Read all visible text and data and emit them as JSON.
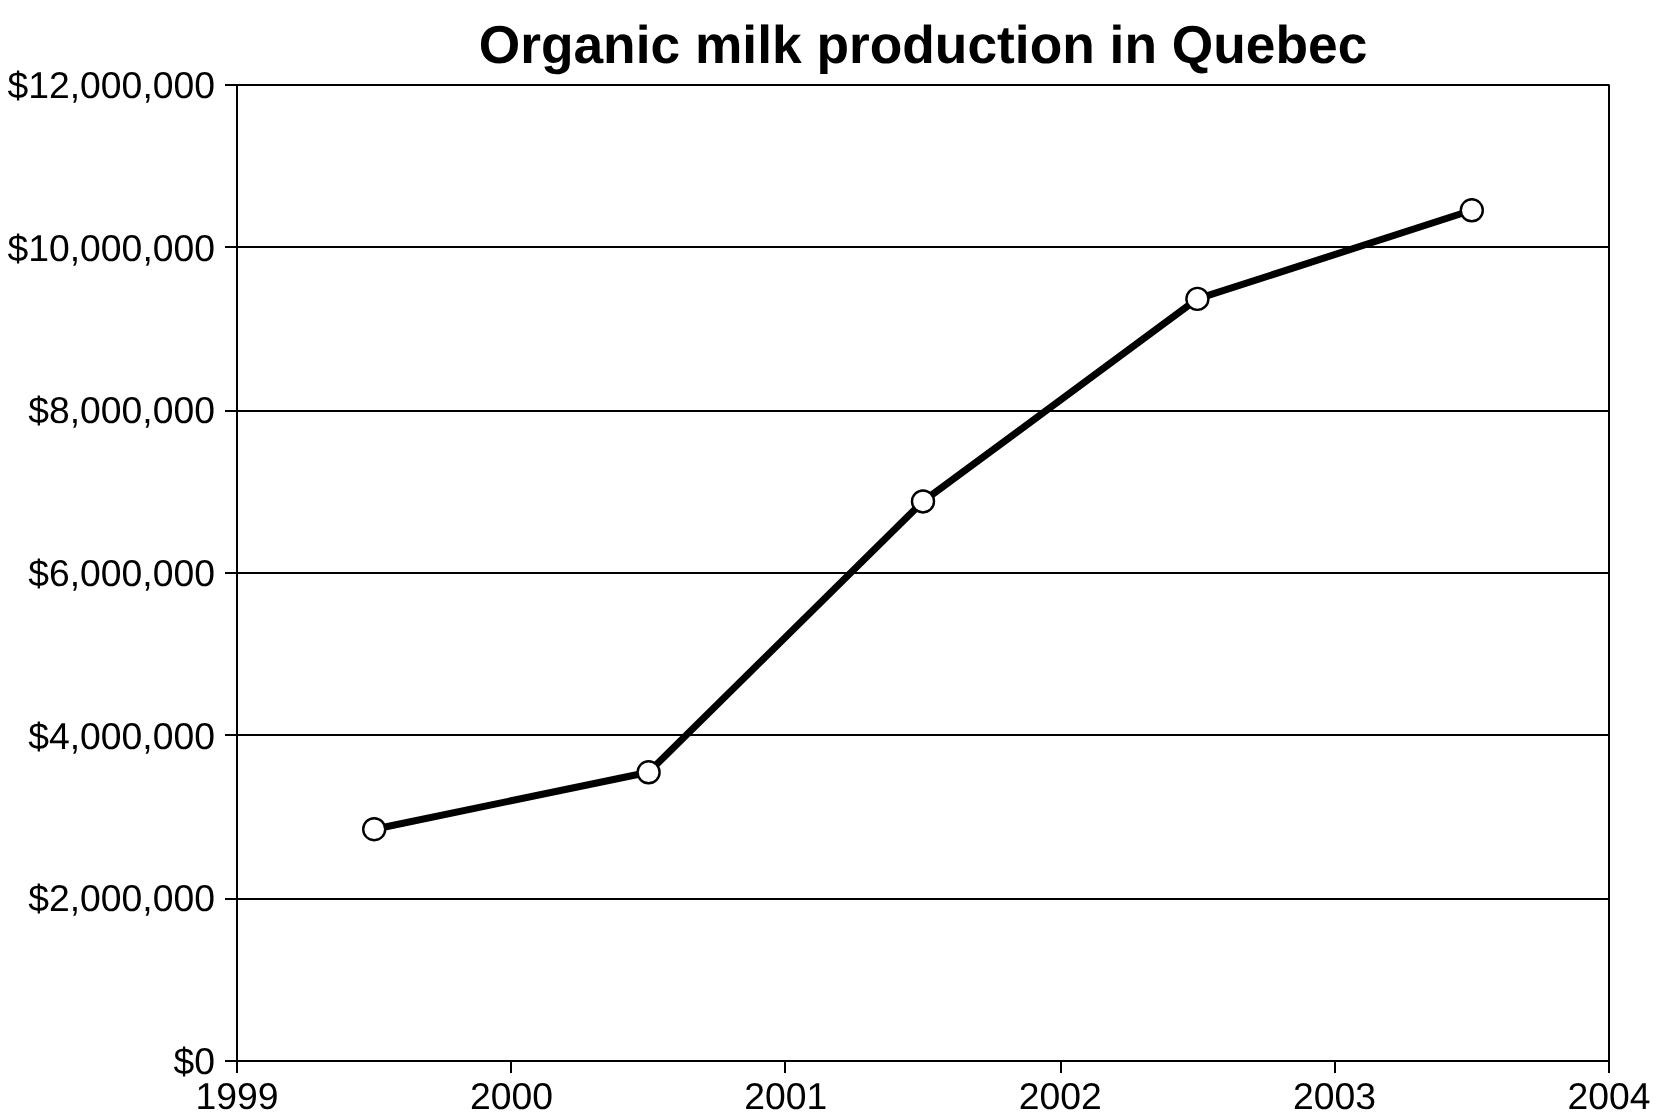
{
  "chart_data": {
    "type": "line",
    "title": "Organic milk production in Quebec",
    "x": [
      1999.5,
      2000.5,
      2001.5,
      2002.5,
      2003.5
    ],
    "series": [
      {
        "color": "#000000",
        "values": [
          2850000,
          3550000,
          6880000,
          9370000,
          10460000
        ]
      }
    ],
    "xlim": [
      1999,
      2004
    ],
    "xticks": [
      1999,
      2000,
      2001,
      2002,
      2003,
      2004
    ],
    "ylim": [
      0,
      12000000
    ],
    "yticks": [
      {
        "value": 0,
        "label": "$0"
      },
      {
        "value": 2000000,
        "label": "$2,000,000"
      },
      {
        "value": 4000000,
        "label": "$4,000,000"
      },
      {
        "value": 6000000,
        "label": "$6,000,000"
      },
      {
        "value": 8000000,
        "label": "$8,000,000"
      },
      {
        "value": 10000000,
        "label": "$10,000,000"
      },
      {
        "value": 12000000,
        "label": "$12,000,000"
      }
    ],
    "grid": "y",
    "marker": "circle",
    "line_style": "solid"
  }
}
